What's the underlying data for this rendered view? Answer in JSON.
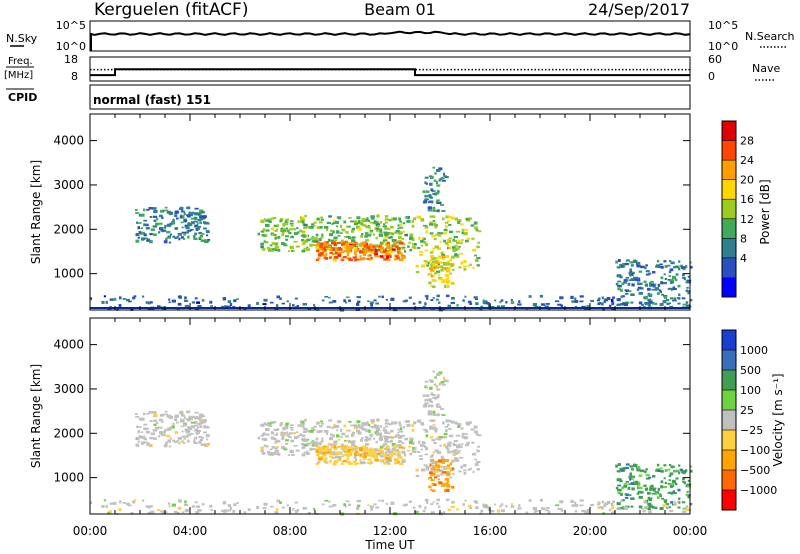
{
  "header": {
    "station": "Kerguelen (fitACF)",
    "beam": "Beam 01",
    "date": "24/Sep/2017"
  },
  "noise_panel": {
    "left_label": "N.Sky",
    "left_ticks": [
      "10^5",
      "10^0"
    ],
    "right_label": "N.Search",
    "right_ticks": [
      "10^5",
      "10^0"
    ]
  },
  "freq_panel": {
    "left_label_1": "Freq.",
    "left_label_2": "[MHz]",
    "left_ticks": [
      "18",
      "8"
    ],
    "right_label": "Nave",
    "right_ticks": [
      "60",
      "0"
    ]
  },
  "cpid_panel": {
    "label": "CPID",
    "mode": "normal (fast) 151"
  },
  "power_panel": {
    "ylabel": "Slant Range [km]",
    "yticks": [
      "4000",
      "3000",
      "2000",
      "1000"
    ],
    "colorbar_label": "Power [dB]",
    "colorbar_ticks": [
      "28",
      "24",
      "20",
      "16",
      "12",
      "8",
      "4"
    ],
    "colors": [
      "#0000ff",
      "#2a4fc0",
      "#2f7f8f",
      "#3faa5a",
      "#9ccc1e",
      "#ffd700",
      "#ff9e00",
      "#ff4500",
      "#e00000"
    ]
  },
  "velocity_panel": {
    "ylabel": "Slant Range [km]",
    "yticks": [
      "4000",
      "3000",
      "2000",
      "1000"
    ],
    "colorbar_label": "Velocity [m s⁻¹]",
    "colorbar_ticks": [
      "1000",
      "500",
      "100",
      "25",
      "−25",
      "−100",
      "−500",
      "−1000"
    ],
    "colors": [
      "#1a3fd0",
      "#3a6ebd",
      "#3f9e55",
      "#6dd440",
      "#c0c0c0",
      "#ffd040",
      "#ffa500",
      "#ff6a00",
      "#ff0000"
    ]
  },
  "xaxis": {
    "label": "Time UT",
    "ticks": [
      "00:00",
      "04:00",
      "08:00",
      "12:00",
      "16:00",
      "20:00",
      "00:00"
    ]
  },
  "chart_data": {
    "type": "heatmap",
    "x_range_hours": [
      0,
      24
    ],
    "y_range_km": [
      180,
      4600
    ],
    "frequency_mhz": [
      {
        "start": 0,
        "end": 1,
        "value": 10
      },
      {
        "start": 1,
        "end": 13,
        "value": 13
      },
      {
        "start": 13,
        "end": 24,
        "value": 10
      }
    ],
    "nave_level": 30,
    "scatter_regions": [
      {
        "t0": 1.8,
        "t1": 4.7,
        "r0": 1700,
        "r1": 2500,
        "power_db": 8,
        "velocity": 25
      },
      {
        "t0": 6.7,
        "t1": 13.0,
        "r0": 1500,
        "r1": 2300,
        "power_db": 14,
        "velocity": 25
      },
      {
        "t0": 9.0,
        "t1": 12.5,
        "r0": 1300,
        "r1": 1700,
        "power_db": 26,
        "velocity": -25
      },
      {
        "t0": 13.0,
        "t1": 15.5,
        "r0": 1000,
        "r1": 2300,
        "power_db": 16,
        "velocity": 25
      },
      {
        "t0": 13.5,
        "t1": 14.5,
        "r0": 700,
        "r1": 1400,
        "power_db": 20,
        "velocity": -300
      },
      {
        "t0": 13.3,
        "t1": 14.2,
        "r0": 2400,
        "r1": 3400,
        "power_db": 8,
        "velocity": 25
      },
      {
        "t0": 21.0,
        "t1": 24.0,
        "r0": 300,
        "r1": 1300,
        "power_db": 8,
        "velocity": 200
      },
      {
        "t0": 0.0,
        "t1": 24.0,
        "r0": 180,
        "r1": 500,
        "power_db": 6,
        "velocity": 25
      }
    ]
  }
}
